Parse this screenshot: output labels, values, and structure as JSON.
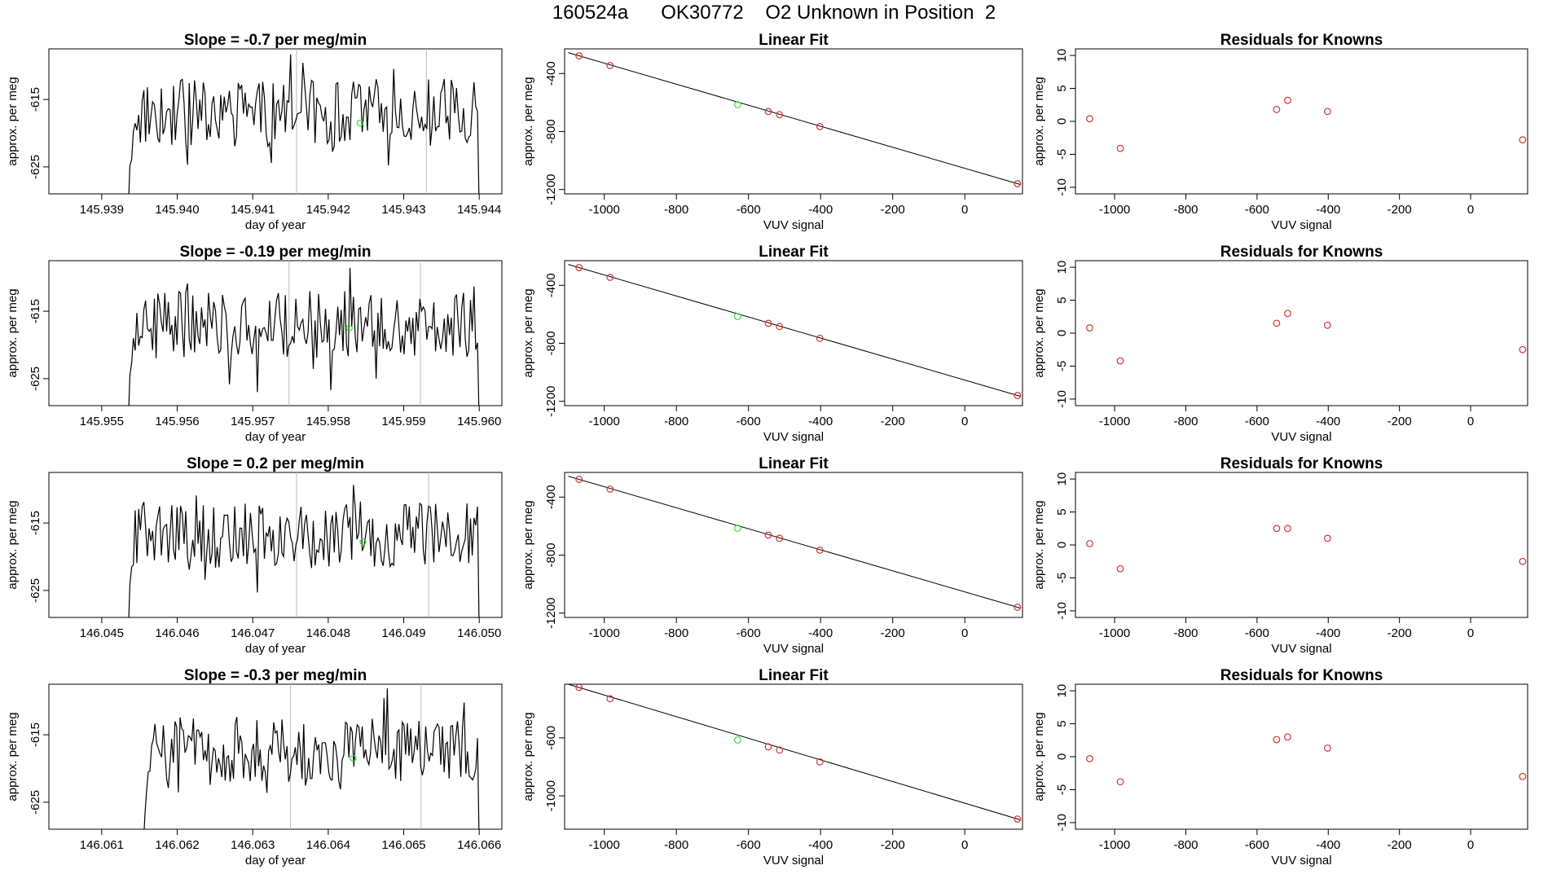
{
  "title": "160524a      OK30772    O2 Unknown in Position  2",
  "colors": {
    "line": "#000000",
    "known_point": "#cd3333",
    "unknown_point": "#33dd33",
    "vline": "#bbbbbb"
  },
  "chart_data": [
    {
      "type": "line",
      "panel": "time-series",
      "row": 1,
      "title": "Slope =  -0.7  per meg/min",
      "xlabel": "day of year",
      "ylabel": "approx. per meg",
      "xlim": [
        145.9383,
        145.9443
      ],
      "ylim": [
        -629.0,
        -607.5
      ],
      "xticks": [
        145.939,
        145.94,
        145.941,
        145.942,
        145.943,
        145.944
      ],
      "xtick_labels": [
        "145.939",
        "145.940",
        "145.941",
        "145.942",
        "145.943",
        "145.944"
      ],
      "yticks": [
        -615,
        -625
      ],
      "ytick_labels": [
        "-615",
        "-625"
      ],
      "data_start": 145.93935,
      "data_end": 145.944,
      "vlines": [
        145.94158,
        145.9433
      ],
      "unknown_point": {
        "x": 145.94242,
        "y": -618.5
      }
    },
    {
      "type": "scatter",
      "panel": "linear-fit",
      "row": 1,
      "title": "Linear Fit",
      "xlabel": "VUV signal",
      "ylabel": "approx. per meg",
      "xlim": [
        -1110,
        160
      ],
      "ylim": [
        -1230,
        -230
      ],
      "xticks": [
        -1000,
        -800,
        -600,
        -400,
        -200,
        0
      ],
      "xtick_labels": [
        "-1000",
        "-800",
        "-600",
        "-400",
        "-200",
        "0"
      ],
      "yticks": [
        -400,
        -800,
        -1200
      ],
      "ytick_labels": [
        "-400",
        "-800",
        "-1200"
      ],
      "known_points": [
        [
          -1070,
          -278
        ],
        [
          -984,
          -345
        ],
        [
          -545,
          -662
        ],
        [
          -514,
          -684
        ],
        [
          -402,
          -766
        ],
        [
          146,
          -1160
        ]
      ],
      "unknown_point": [
        -630,
        -615
      ],
      "fit_line": [
        [
          -1100,
          -256
        ],
        [
          155,
          -1166
        ]
      ]
    },
    {
      "type": "scatter",
      "panel": "residuals",
      "row": 1,
      "title": "Residuals for Knowns",
      "xlabel": "VUV signal",
      "ylabel": "approx. per meg",
      "xlim": [
        -1110,
        160
      ],
      "ylim": [
        -11,
        11
      ],
      "xticks": [
        -1000,
        -800,
        -600,
        -400,
        -200,
        0
      ],
      "xtick_labels": [
        "-1000",
        "-800",
        "-600",
        "-400",
        "-200",
        "0"
      ],
      "yticks": [
        10,
        5,
        0,
        -5,
        -10
      ],
      "ytick_labels": [
        "10",
        "5",
        "0",
        "-5",
        "-10"
      ],
      "points": [
        [
          -1070,
          0.4
        ],
        [
          -984,
          -4.1
        ],
        [
          -545,
          1.8
        ],
        [
          -514,
          3.2
        ],
        [
          -402,
          1.5
        ],
        [
          146,
          -2.8
        ]
      ]
    },
    {
      "type": "line",
      "panel": "time-series",
      "row": 2,
      "title": "Slope =  -0.19  per meg/min",
      "xlabel": "day of year",
      "ylabel": "approx. per meg",
      "xlim": [
        145.9543,
        145.9603
      ],
      "ylim": [
        -629.0,
        -607.5
      ],
      "xticks": [
        145.955,
        145.956,
        145.957,
        145.958,
        145.959,
        145.96
      ],
      "xtick_labels": [
        "145.955",
        "145.956",
        "145.957",
        "145.958",
        "145.959",
        "145.960"
      ],
      "yticks": [
        -615,
        -625
      ],
      "ytick_labels": [
        "-615",
        "-625"
      ],
      "data_start": 145.95535,
      "data_end": 145.96,
      "vlines": [
        145.95748,
        145.95922
      ],
      "unknown_point": {
        "x": 145.95828,
        "y": -617.5
      }
    },
    {
      "type": "scatter",
      "panel": "linear-fit",
      "row": 2,
      "title": "Linear Fit",
      "xlabel": "VUV signal",
      "ylabel": "approx. per meg",
      "xlim": [
        -1110,
        160
      ],
      "ylim": [
        -1230,
        -230
      ],
      "xticks": [
        -1000,
        -800,
        -600,
        -400,
        -200,
        0
      ],
      "xtick_labels": [
        "-1000",
        "-800",
        "-600",
        "-400",
        "-200",
        "0"
      ],
      "yticks": [
        -400,
        -800,
        -1200
      ],
      "ytick_labels": [
        "-400",
        "-800",
        "-1200"
      ],
      "known_points": [
        [
          -1070,
          -278
        ],
        [
          -984,
          -345
        ],
        [
          -545,
          -662
        ],
        [
          -514,
          -684
        ],
        [
          -402,
          -766
        ],
        [
          146,
          -1160
        ]
      ],
      "unknown_point": [
        -630,
        -615
      ],
      "fit_line": [
        [
          -1100,
          -256
        ],
        [
          155,
          -1166
        ]
      ]
    },
    {
      "type": "scatter",
      "panel": "residuals",
      "row": 2,
      "title": "Residuals for Knowns",
      "xlabel": "VUV signal",
      "ylabel": "approx. per meg",
      "xlim": [
        -1110,
        160
      ],
      "ylim": [
        -11,
        11
      ],
      "xticks": [
        -1000,
        -800,
        -600,
        -400,
        -200,
        0
      ],
      "xtick_labels": [
        "-1000",
        "-800",
        "-600",
        "-400",
        "-200",
        "0"
      ],
      "yticks": [
        10,
        5,
        0,
        -5,
        -10
      ],
      "ytick_labels": [
        "10",
        "5",
        "0",
        "-5",
        "-10"
      ],
      "points": [
        [
          -1070,
          0.8
        ],
        [
          -984,
          -4.2
        ],
        [
          -545,
          1.5
        ],
        [
          -514,
          3.0
        ],
        [
          -402,
          1.2
        ],
        [
          146,
          -2.5
        ]
      ]
    },
    {
      "type": "line",
      "panel": "time-series",
      "row": 3,
      "title": "Slope =  0.2  per meg/min",
      "xlabel": "day of year",
      "ylabel": "approx. per meg",
      "xlim": [
        146.0443,
        146.0503
      ],
      "ylim": [
        -629.0,
        -607.5
      ],
      "xticks": [
        146.045,
        146.046,
        146.047,
        146.048,
        146.049,
        146.05
      ],
      "xtick_labels": [
        "146.045",
        "146.046",
        "146.047",
        "146.048",
        "146.049",
        "146.050"
      ],
      "yticks": [
        -615,
        -625
      ],
      "ytick_labels": [
        "-615",
        "-625"
      ],
      "data_start": 146.04535,
      "data_end": 146.05,
      "vlines": [
        146.04758,
        146.04933
      ],
      "unknown_point": {
        "x": 146.04846,
        "y": -617.8
      }
    },
    {
      "type": "scatter",
      "panel": "linear-fit",
      "row": 3,
      "title": "Linear Fit",
      "xlabel": "VUV signal",
      "ylabel": "approx. per meg",
      "xlim": [
        -1110,
        160
      ],
      "ylim": [
        -1230,
        -230
      ],
      "xticks": [
        -1000,
        -800,
        -600,
        -400,
        -200,
        0
      ],
      "xtick_labels": [
        "-1000",
        "-800",
        "-600",
        "-400",
        "-200",
        "0"
      ],
      "yticks": [
        -400,
        -800,
        -1200
      ],
      "ytick_labels": [
        "-400",
        "-800",
        "-1200"
      ],
      "known_points": [
        [
          -1070,
          -278
        ],
        [
          -984,
          -345
        ],
        [
          -545,
          -662
        ],
        [
          -514,
          -684
        ],
        [
          -402,
          -766
        ],
        [
          146,
          -1160
        ]
      ],
      "unknown_point": [
        -630,
        -615
      ],
      "fit_line": [
        [
          -1100,
          -256
        ],
        [
          155,
          -1166
        ]
      ]
    },
    {
      "type": "scatter",
      "panel": "residuals",
      "row": 3,
      "title": "Residuals for Knowns",
      "xlabel": "VUV signal",
      "ylabel": "approx. per meg",
      "xlim": [
        -1110,
        160
      ],
      "ylim": [
        -11,
        11
      ],
      "xticks": [
        -1000,
        -800,
        -600,
        -400,
        -200,
        0
      ],
      "xtick_labels": [
        "-1000",
        "-800",
        "-600",
        "-400",
        "-200",
        "0"
      ],
      "yticks": [
        10,
        5,
        0,
        -5,
        -10
      ],
      "ytick_labels": [
        "10",
        "5",
        "0",
        "-5",
        "-10"
      ],
      "points": [
        [
          -1070,
          0.2
        ],
        [
          -984,
          -3.6
        ],
        [
          -545,
          2.5
        ],
        [
          -514,
          2.5
        ],
        [
          -402,
          1.0
        ],
        [
          146,
          -2.5
        ]
      ]
    },
    {
      "type": "line",
      "panel": "time-series",
      "row": 4,
      "title": "Slope =  -0.3  per meg/min",
      "xlabel": "day of year",
      "ylabel": "approx. per meg",
      "xlim": [
        146.0603,
        146.0663
      ],
      "ylim": [
        -629.0,
        -607.5
      ],
      "xticks": [
        146.061,
        146.062,
        146.063,
        146.064,
        146.065,
        146.066
      ],
      "xtick_labels": [
        "146.061",
        "146.062",
        "146.063",
        "146.064",
        "146.065",
        "146.066"
      ],
      "yticks": [
        -615,
        -625
      ],
      "ytick_labels": [
        "-615",
        "-625"
      ],
      "data_start": 146.06155,
      "data_end": 146.066,
      "vlines": [
        146.0635,
        146.06523
      ],
      "unknown_point": {
        "x": 146.06433,
        "y": -618.5
      }
    },
    {
      "type": "scatter",
      "panel": "linear-fit",
      "row": 4,
      "title": "Linear Fit",
      "xlabel": "VUV signal",
      "ylabel": "approx. per meg",
      "xlim": [
        -1110,
        160
      ],
      "ylim": [
        -1230,
        -230
      ],
      "xticks": [
        -1000,
        -800,
        -600,
        -400,
        -200,
        0
      ],
      "xtick_labels": [
        "-1000",
        "-800",
        "-600",
        "-400",
        "-200",
        "0"
      ],
      "yticks": [
        -600,
        -1000
      ],
      "ytick_labels": [
        "-600",
        "-1000"
      ],
      "known_points": [
        [
          -1070,
          -252
        ],
        [
          -984,
          -330
        ],
        [
          -545,
          -662
        ],
        [
          -514,
          -684
        ],
        [
          -402,
          -766
        ],
        [
          146,
          -1160
        ]
      ],
      "unknown_point": [
        -630,
        -615
      ],
      "fit_line": [
        [
          -1100,
          -230
        ],
        [
          155,
          -1166
        ]
      ]
    },
    {
      "type": "scatter",
      "panel": "residuals",
      "row": 4,
      "title": "Residuals for Knowns",
      "xlabel": "VUV signal",
      "ylabel": "approx. per meg",
      "xlim": [
        -1110,
        160
      ],
      "ylim": [
        -11,
        11
      ],
      "xticks": [
        -1000,
        -800,
        -600,
        -400,
        -200,
        0
      ],
      "xtick_labels": [
        "-1000",
        "-800",
        "-600",
        "-400",
        "-200",
        "0"
      ],
      "yticks": [
        10,
        5,
        0,
        -5,
        -10
      ],
      "ytick_labels": [
        "10",
        "5",
        "0",
        "-5",
        "-10"
      ],
      "points": [
        [
          -1070,
          -0.3
        ],
        [
          -984,
          -3.8
        ],
        [
          -545,
          2.6
        ],
        [
          -514,
          3.0
        ],
        [
          -402,
          1.3
        ],
        [
          146,
          -3.0
        ]
      ]
    }
  ]
}
